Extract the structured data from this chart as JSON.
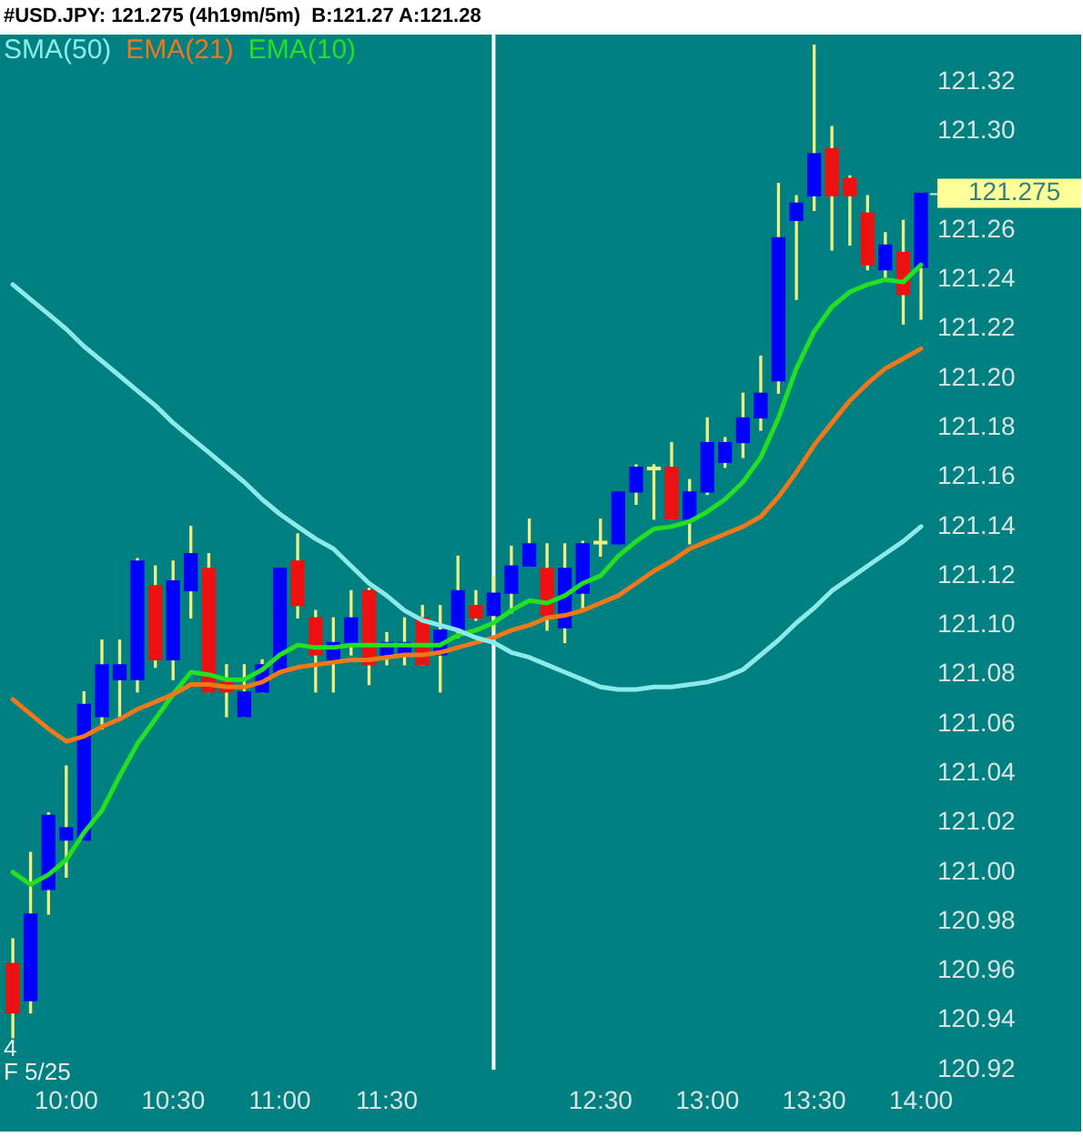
{
  "chart_data": {
    "type": "candlestick",
    "title": "#USD.JPY: 121.275 (4h19m/5m)  B:121.27 A:121.28",
    "x": [
      9.75,
      9.833,
      9.917,
      10,
      10.083,
      10.167,
      10.25,
      10.333,
      10.417,
      10.5,
      10.583,
      10.667,
      10.75,
      10.833,
      10.917,
      11,
      11.083,
      11.167,
      11.25,
      11.333,
      11.417,
      11.5,
      11.583,
      11.667,
      11.75,
      11.833,
      11.917,
      12,
      12.083,
      12.167,
      12.25,
      12.333,
      12.417,
      12.5,
      12.583,
      12.667,
      12.75,
      12.833,
      12.917,
      13,
      13.083,
      13.167,
      13.25,
      13.333,
      13.417,
      13.5,
      13.583,
      13.667,
      13.75,
      13.833,
      13.917,
      14
    ],
    "xlim": [
      9.69,
      14
    ],
    "xticks": [
      {
        "value": 10,
        "label": "10:00"
      },
      {
        "value": 10.5,
        "label": "10:30"
      },
      {
        "value": 11,
        "label": "11:00"
      },
      {
        "value": 11.5,
        "label": "11:30"
      },
      {
        "value": 12.5,
        "label": "12:30"
      },
      {
        "value": 13,
        "label": "13:00"
      },
      {
        "value": 13.5,
        "label": "13:30"
      },
      {
        "value": 14,
        "label": "14:00"
      }
    ],
    "ylim": [
      120.92,
      121.34
    ],
    "yticks": [
      120.92,
      120.94,
      120.96,
      120.98,
      {
        "value": 121,
        "label": "121.00"
      },
      121.02,
      121.04,
      121.06,
      121.08,
      {
        "value": 121.1,
        "label": "121.10"
      },
      121.12,
      121.14,
      121.16,
      121.18,
      {
        "value": 121.2,
        "label": "121.20"
      },
      121.22,
      121.24,
      121.26,
      {
        "value": 121.3,
        "label": "121.30"
      },
      121.32
    ],
    "series": [
      {
        "ohlc": [
          [
            120.963,
            120.973,
            120.933,
            120.943
          ],
          [
            120.948,
            121.008,
            120.943,
            120.983
          ],
          [
            120.993,
            121.024,
            120.983,
            121.023
          ],
          [
            121.013,
            121.043,
            120.998,
            121.018
          ],
          [
            121.013,
            121.073,
            121.013,
            121.068
          ],
          [
            121.063,
            121.094,
            121.058,
            121.084
          ],
          [
            121.078,
            121.094,
            121.063,
            121.084
          ],
          [
            121.078,
            121.127,
            121.073,
            121.126
          ],
          [
            121.116,
            121.124,
            121.083,
            121.086
          ],
          [
            121.086,
            121.126,
            121.078,
            121.118
          ],
          [
            121.114,
            121.14,
            121.103,
            121.129
          ],
          [
            121.123,
            121.129,
            121.073,
            121.073
          ],
          [
            121.077,
            121.084,
            121.063,
            121.073
          ],
          [
            121.063,
            121.084,
            121.063,
            121.073
          ],
          [
            121.073,
            121.086,
            121.073,
            121.084
          ],
          [
            121.081,
            121.123,
            121.081,
            121.123
          ],
          [
            121.126,
            121.137,
            121.103,
            121.108
          ],
          [
            121.103,
            121.106,
            121.073,
            121.088
          ],
          [
            121.086,
            121.103,
            121.073,
            121.093
          ],
          [
            121.093,
            121.114,
            121.088,
            121.103
          ],
          [
            121.114,
            121.115,
            121.076,
            121.084
          ],
          [
            121.088,
            121.097,
            121.084,
            121.093
          ],
          [
            121.088,
            121.103,
            121.084,
            121.093
          ],
          [
            121.103,
            121.108,
            121.084,
            121.084
          ],
          [
            121.088,
            121.108,
            121.073,
            121.098
          ],
          [
            121.098,
            121.128,
            121.095,
            121.114
          ],
          [
            121.108,
            121.114,
            121.102,
            121.103
          ],
          [
            121.104,
            121.12,
            121.098,
            121.113
          ],
          [
            121.113,
            121.132,
            121.105,
            121.124
          ],
          [
            121.124,
            121.143,
            121.124,
            121.133
          ],
          [
            121.123,
            121.133,
            121.098,
            121.104
          ],
          [
            121.099,
            121.133,
            121.093,
            121.123
          ],
          [
            121.113,
            121.134,
            121.106,
            121.133
          ],
          [
            121.133,
            121.143,
            121.128,
            121.134
          ],
          [
            121.133,
            121.154,
            121.133,
            121.154
          ],
          [
            121.154,
            121.165,
            121.149,
            121.164
          ],
          [
            121.163,
            121.165,
            121.143,
            121.164
          ],
          [
            121.164,
            121.174,
            121.143,
            121.143
          ],
          [
            121.143,
            121.159,
            121.133,
            121.154
          ],
          [
            121.154,
            121.184,
            121.153,
            121.174
          ],
          [
            121.166,
            121.176,
            121.164,
            121.174
          ],
          [
            121.174,
            121.194,
            121.168,
            121.184
          ],
          [
            121.184,
            121.209,
            121.179,
            121.194
          ],
          [
            121.199,
            121.279,
            121.194,
            121.257
          ],
          [
            121.264,
            121.274,
            121.232,
            121.271
          ],
          [
            121.274,
            121.335,
            121.268,
            121.291
          ],
          [
            121.293,
            121.302,
            121.252,
            121.274
          ],
          [
            121.281,
            121.282,
            121.254,
            121.274
          ],
          [
            121.267,
            121.274,
            121.244,
            121.246
          ],
          [
            121.244,
            121.259,
            121.24,
            121.254
          ],
          [
            121.251,
            121.264,
            121.222,
            121.234
          ],
          [
            121.245,
            121.275,
            121.224,
            121.275
          ]
        ],
        "colors": [
          "#ee1111",
          "#0000ff",
          "#0000ff",
          "#0000ff",
          "#0000ff",
          "#0000ff",
          "#0000ff",
          "#0000ff",
          "#ee1111",
          "#0000ff",
          "#0000ff",
          "#ee1111",
          "#ee1111",
          "#0000ff",
          "#0000ff",
          "#0000ff",
          "#ee1111",
          "#ee1111",
          "#0000ff",
          "#0000ff",
          "#ee1111",
          "#0000ff",
          "#0000ff",
          "#ee1111",
          "#0000ff",
          "#0000ff",
          "#ee1111",
          "#0000ff",
          "#0000ff",
          "#0000ff",
          "#ee1111",
          "#0000ff",
          "#0000ff",
          "#f0f080",
          "#0000ff",
          "#0000ff",
          "#f0f080",
          "#ee1111",
          "#0000ff",
          "#0000ff",
          "#0000ff",
          "#0000ff",
          "#0000ff",
          "#0000ff",
          "#0000ff",
          "#0000ff",
          "#ee1111",
          "#ee1111",
          "#ee1111",
          "#0000ff",
          "#ee1111",
          "#0000ff"
        ]
      },
      {
        "type": "line",
        "name": "SMA(50)",
        "color": "#8ceaea",
        "values": [
          121.238,
          121.232,
          121.226,
          121.22,
          121.213,
          121.207,
          121.201,
          121.195,
          121.189,
          121.182,
          121.176,
          121.17,
          121.164,
          121.158,
          121.151,
          121.145,
          121.14,
          121.135,
          121.131,
          121.124,
          121.117,
          121.112,
          121.106,
          121.102,
          121.1,
          121.098,
          121.095,
          121.093,
          121.089,
          121.087,
          121.084,
          121.081,
          121.078,
          121.075,
          121.074,
          121.074,
          121.075,
          121.075,
          121.076,
          121.077,
          121.079,
          121.082,
          121.088,
          121.094,
          121.101,
          121.107,
          121.114,
          121.119,
          121.124,
          121.129,
          121.134,
          121.14
        ]
      },
      {
        "type": "line",
        "name": "EMA(21)",
        "color": "#f07818",
        "values": [
          121.07,
          121.064,
          121.058,
          121.053,
          121.055,
          121.059,
          121.062,
          121.066,
          121.069,
          121.072,
          121.076,
          121.076,
          121.075,
          121.075,
          121.077,
          121.081,
          121.083,
          121.084,
          121.085,
          121.086,
          121.086,
          121.087,
          121.088,
          121.088,
          121.089,
          121.091,
          121.093,
          121.095,
          121.098,
          121.1,
          121.103,
          121.104,
          121.106,
          121.109,
          121.112,
          121.117,
          121.122,
          121.126,
          121.131,
          121.134,
          121.137,
          121.14,
          121.144,
          121.152,
          121.162,
          121.173,
          121.182,
          121.191,
          121.198,
          121.204,
          121.208,
          121.212
        ]
      },
      {
        "type": "line",
        "name": "EMA(10)",
        "color": "#22e022",
        "values": [
          121.0,
          120.995,
          120.999,
          121.005,
          121.016,
          121.025,
          121.039,
          121.052,
          121.062,
          121.072,
          121.081,
          121.08,
          121.078,
          121.078,
          121.082,
          121.088,
          121.092,
          121.091,
          121.091,
          121.092,
          121.092,
          121.092,
          121.092,
          121.092,
          121.092,
          121.096,
          121.098,
          121.101,
          121.106,
          121.11,
          121.109,
          121.112,
          121.117,
          121.12,
          121.128,
          121.134,
          121.139,
          121.14,
          121.142,
          121.146,
          121.151,
          121.158,
          121.168,
          121.184,
          121.204,
          121.219,
          121.229,
          121.235,
          121.238,
          121.24,
          121.239,
          121.246
        ]
      }
    ],
    "legend": "top left",
    "ref_lines": [
      {
        "axis": "x",
        "value": 12,
        "color": "#ffffff"
      }
    ],
    "annotations": [
      {
        "text": "121.275",
        "x": 14,
        "y": 121.275
      },
      "4",
      "F 5/25"
    ]
  }
}
